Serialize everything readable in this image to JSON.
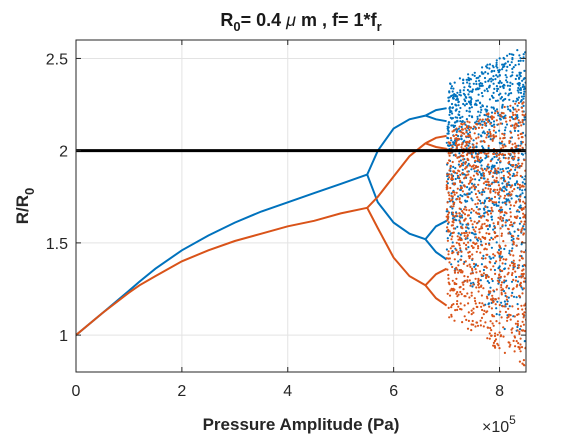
{
  "chart_data": {
    "type": "scatter",
    "title": {
      "r": "R",
      "r_sub": "0",
      "main": "= 0.4 ",
      "mu": "μ",
      "after_mu": " m , f= 1*f",
      "f_sub": "r"
    },
    "xlabel": "Pressure Amplitude (Pa)",
    "ylabel": {
      "main": "R/R",
      "sub": "0"
    },
    "x_multiplier": {
      "prefix": "×10",
      "exp": "5"
    },
    "xlim": [
      0,
      8.5
    ],
    "ylim": [
      0.8,
      2.6
    ],
    "x_ticks": [
      0,
      2,
      4,
      6,
      8
    ],
    "x_tick_labels": [
      "0",
      "2",
      "4",
      "6",
      "8"
    ],
    "y_ticks": [
      1,
      1.5,
      2,
      2.5
    ],
    "y_tick_labels": [
      "1",
      "1.5",
      "2",
      "2.5"
    ],
    "grid": true,
    "colors": {
      "blue": "#0072BD",
      "orange": "#D95319",
      "threshold": "#000000"
    },
    "reference_line": {
      "y": 2.0,
      "x": [
        0,
        8.5
      ],
      "color": "#000000"
    },
    "series": [
      {
        "color": "#0072BD",
        "branches": [
          {
            "x": [
              0,
              0.5,
              1.0,
              1.2,
              1.5,
              2.0,
              2.5,
              3.0,
              3.5,
              4.0,
              4.5,
              5.0,
              5.5
            ],
            "y": [
              1.0,
              1.12,
              1.24,
              1.29,
              1.36,
              1.46,
              1.54,
              1.61,
              1.67,
              1.72,
              1.77,
              1.82,
              1.87
            ]
          },
          {
            "x": [
              5.5,
              5.7,
              6.0,
              6.3,
              6.6
            ],
            "y": [
              1.87,
              2.0,
              2.12,
              2.17,
              2.19
            ]
          },
          {
            "x": [
              5.5,
              5.7,
              6.0,
              6.3,
              6.6
            ],
            "y": [
              1.87,
              1.72,
              1.61,
              1.55,
              1.52
            ]
          },
          {
            "x": [
              6.6,
              6.8,
              7.0
            ],
            "y": [
              2.19,
              2.22,
              2.23
            ]
          },
          {
            "x": [
              6.6,
              6.8,
              7.0
            ],
            "y": [
              2.19,
              2.17,
              2.16
            ]
          },
          {
            "x": [
              6.6,
              6.8,
              7.0
            ],
            "y": [
              1.52,
              1.59,
              1.62
            ]
          },
          {
            "x": [
              6.6,
              6.8,
              7.0
            ],
            "y": [
              1.52,
              1.45,
              1.41
            ]
          }
        ],
        "chaos": {
          "x_range": [
            7.0,
            8.5
          ],
          "y_low": [
            1.38,
            0.88
          ],
          "y_high": [
            2.36,
            2.57
          ],
          "density": 1100
        }
      },
      {
        "color": "#D95319",
        "branches": [
          {
            "x": [
              0,
              0.5,
              1.0,
              1.2,
              1.5,
              2.0,
              2.5,
              3.0,
              3.5,
              4.0,
              4.5,
              5.0,
              5.5
            ],
            "y": [
              1.0,
              1.12,
              1.23,
              1.27,
              1.32,
              1.4,
              1.46,
              1.51,
              1.55,
              1.59,
              1.62,
              1.66,
              1.69
            ]
          },
          {
            "x": [
              5.5,
              5.7,
              6.0,
              6.3,
              6.6
            ],
            "y": [
              1.69,
              1.75,
              1.86,
              1.97,
              2.04
            ]
          },
          {
            "x": [
              5.5,
              5.7,
              6.0,
              6.3,
              6.6
            ],
            "y": [
              1.69,
              1.58,
              1.42,
              1.32,
              1.27
            ]
          },
          {
            "x": [
              6.6,
              6.8,
              7.0
            ],
            "y": [
              2.04,
              2.07,
              2.08
            ]
          },
          {
            "x": [
              6.6,
              6.8,
              7.0
            ],
            "y": [
              2.04,
              2.02,
              2.01
            ]
          },
          {
            "x": [
              6.6,
              6.8,
              7.0
            ],
            "y": [
              1.27,
              1.33,
              1.36
            ]
          },
          {
            "x": [
              6.6,
              6.8,
              7.0
            ],
            "y": [
              1.27,
              1.2,
              1.16
            ]
          }
        ],
        "chaos": {
          "x_range": [
            7.0,
            8.5
          ],
          "y_low": [
            1.1,
            0.82
          ],
          "y_high": [
            2.12,
            2.28
          ],
          "density": 1100
        }
      }
    ]
  }
}
